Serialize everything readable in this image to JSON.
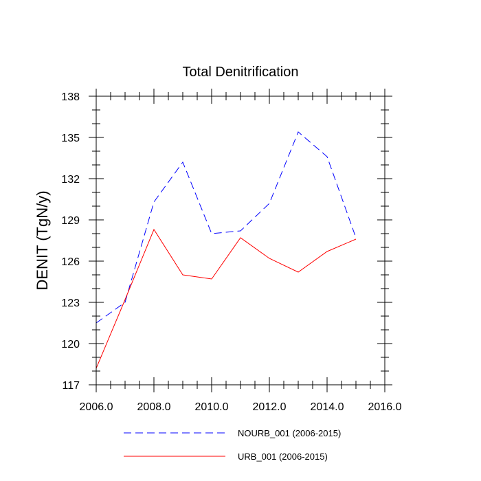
{
  "chart_data": {
    "type": "line",
    "title": "Total Denitrification",
    "xlabel": "",
    "ylabel": "DENIT  (TgN/y)",
    "xlim": [
      2006,
      2016
    ],
    "ylim": [
      117,
      138
    ],
    "x_ticks": [
      2006,
      2008,
      2010,
      2012,
      2014,
      2016
    ],
    "x_tick_labels": [
      "2006.0",
      "2008.0",
      "2010.0",
      "2012.0",
      "2014.0",
      "2016.0"
    ],
    "y_ticks": [
      117,
      120,
      123,
      126,
      129,
      132,
      135,
      138
    ],
    "y_tick_labels": [
      "117",
      "120",
      "123",
      "126",
      "129",
      "132",
      "135",
      "138"
    ],
    "grid": false,
    "legend_position": "bottom",
    "x": [
      2006,
      2007,
      2008,
      2009,
      2010,
      2011,
      2012,
      2013,
      2014,
      2015
    ],
    "series": [
      {
        "name": "NOURB_001 (2006-2015)",
        "color": "#0000ff",
        "style": "dashed",
        "values": [
          121.5,
          123.0,
          130.3,
          133.2,
          128.0,
          128.2,
          130.2,
          135.4,
          133.6,
          127.7
        ]
      },
      {
        "name": "URB_001 (2006-2015)",
        "color": "#ff0000",
        "style": "solid",
        "values": [
          118.2,
          123.2,
          128.3,
          125.0,
          124.7,
          127.7,
          126.2,
          125.2,
          126.7,
          127.6
        ]
      }
    ]
  }
}
